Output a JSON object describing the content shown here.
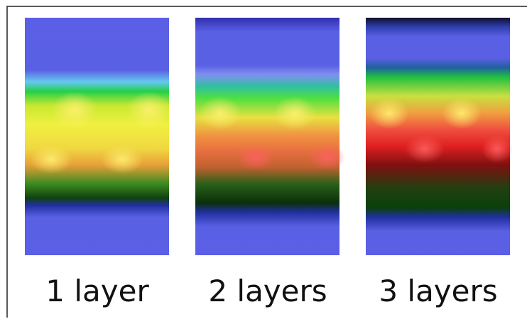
{
  "panels": [
    {
      "label": "1 layer"
    },
    {
      "label": "2 layers"
    },
    {
      "label": "3 layers"
    }
  ]
}
